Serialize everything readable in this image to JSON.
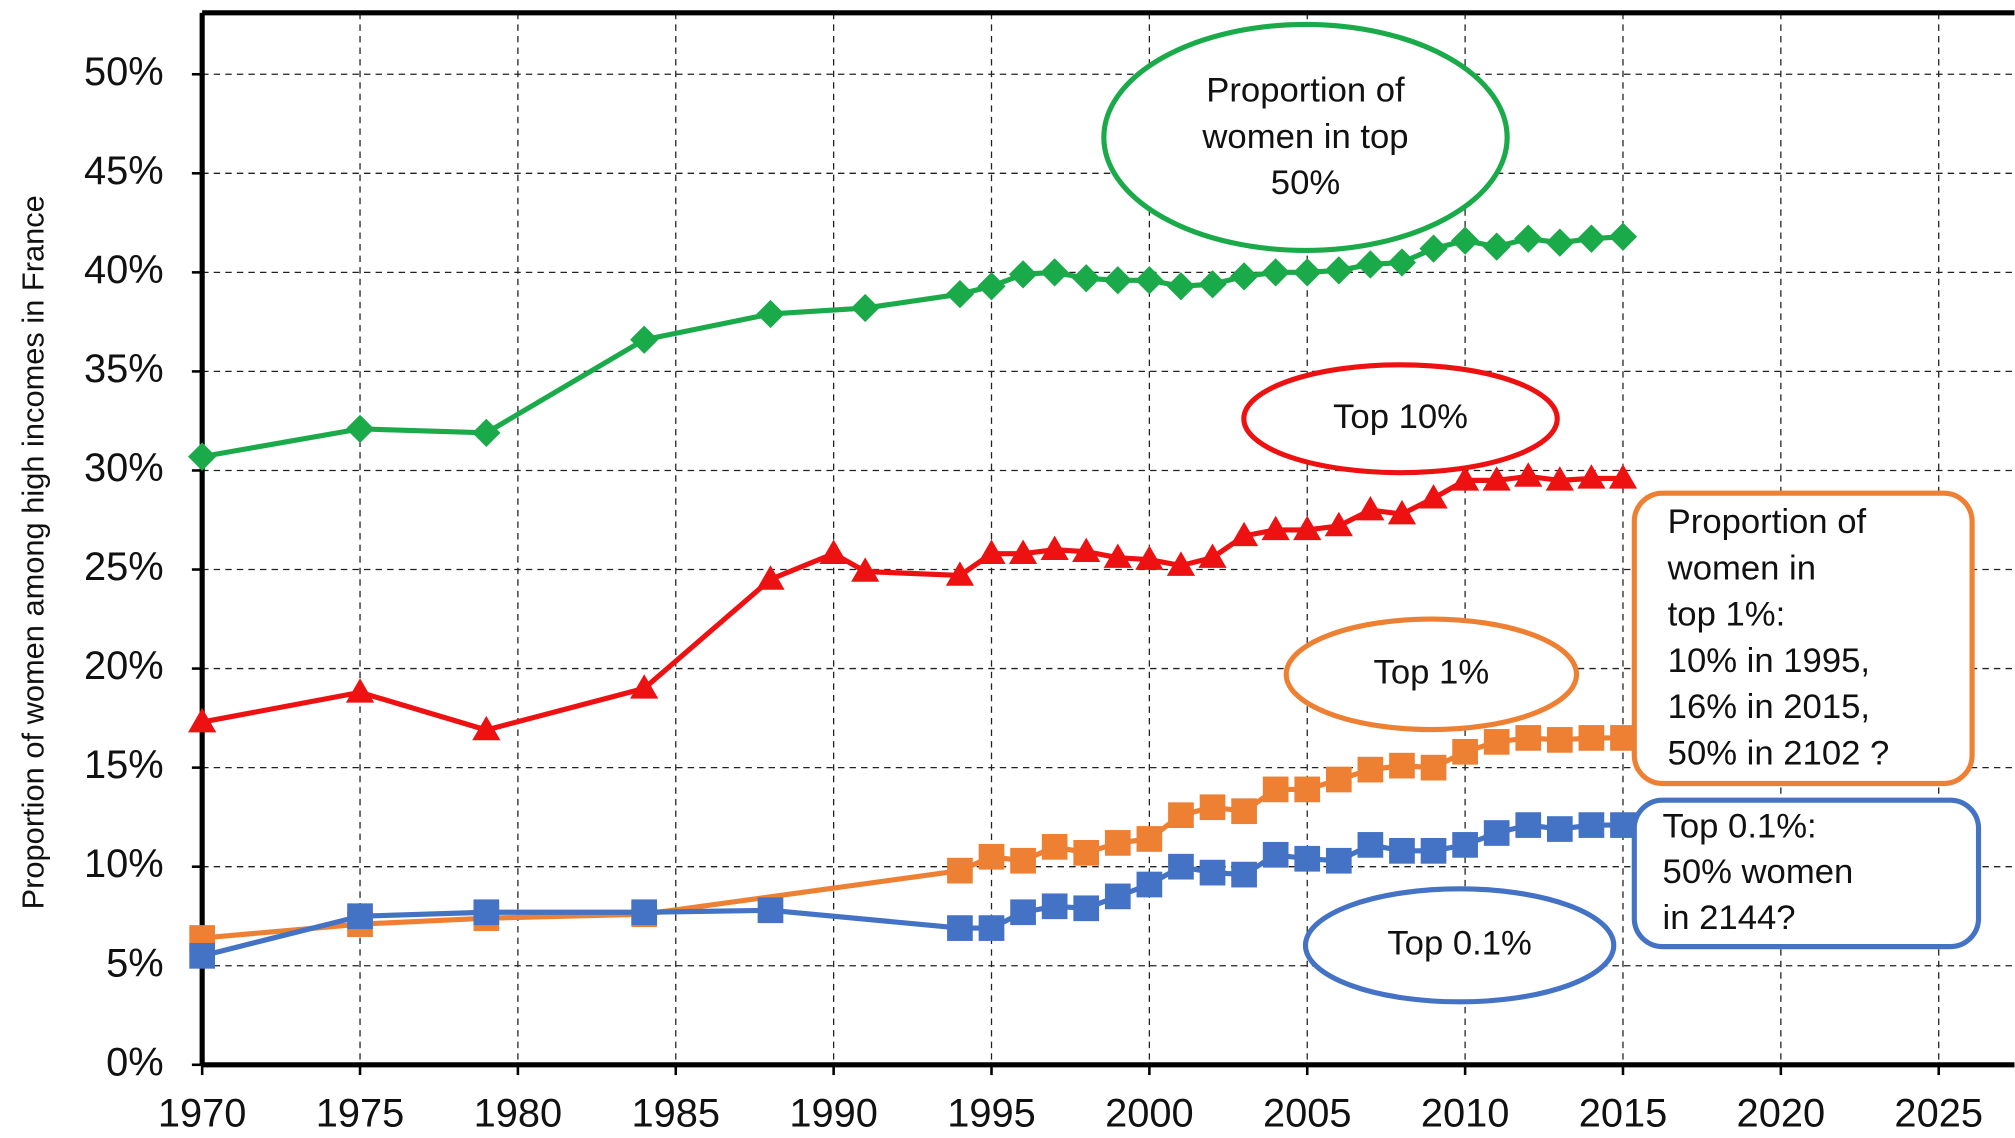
{
  "chart_data": {
    "type": "line",
    "y_label": "Proportion of women among high incomes in France",
    "xlim": [
      1970,
      2027.4
    ],
    "ylim": [
      0,
      53.1
    ],
    "xticks": [
      1970,
      1975,
      1980,
      1985,
      1990,
      1995,
      2000,
      2005,
      2010,
      2015,
      2020,
      2025
    ],
    "yticks": [
      {
        "value": 0,
        "label": "0%"
      },
      {
        "value": 5,
        "label": "5%"
      },
      {
        "value": 10,
        "label": "10%"
      },
      {
        "value": 15,
        "label": "15%"
      },
      {
        "value": 20,
        "label": "20%"
      },
      {
        "value": 25,
        "label": "25%"
      },
      {
        "value": 30,
        "label": "30%"
      },
      {
        "value": 35,
        "label": "35%"
      },
      {
        "value": 40,
        "label": "40%"
      },
      {
        "value": 45,
        "label": "45%"
      },
      {
        "value": 50,
        "label": "50%"
      }
    ],
    "grid": true,
    "series": [
      {
        "color": "#1aaa4a",
        "marker": "diamond",
        "x": [
          1970,
          1975,
          1979,
          1984,
          1988,
          1991,
          1994,
          1995,
          1996,
          1997,
          1998,
          1999,
          2000,
          2001,
          2002,
          2003,
          2004,
          2005,
          2006,
          2007,
          2008,
          2009,
          2010,
          2011,
          2012,
          2013,
          2014,
          2015
        ],
        "values": [
          30.7,
          32.1,
          31.9,
          36.6,
          37.9,
          38.2,
          38.9,
          39.3,
          39.9,
          40.0,
          39.7,
          39.6,
          39.6,
          39.3,
          39.4,
          39.8,
          40.0,
          40.0,
          40.1,
          40.4,
          40.5,
          41.2,
          41.6,
          41.3,
          41.7,
          41.5,
          41.7,
          41.8
        ]
      },
      {
        "color": "#ee1111",
        "marker": "triangle",
        "x": [
          1970,
          1975,
          1979,
          1984,
          1988,
          1990,
          1991,
          1994,
          1995,
          1996,
          1997,
          1998,
          1999,
          2000,
          2001,
          2002,
          2003,
          2004,
          2005,
          2006,
          2007,
          2008,
          2009,
          2010,
          2011,
          2012,
          2013,
          2014,
          2015
        ],
        "values": [
          17.3,
          18.8,
          16.9,
          19.0,
          24.5,
          25.8,
          24.9,
          24.7,
          25.8,
          25.8,
          26.0,
          25.9,
          25.6,
          25.5,
          25.2,
          25.6,
          26.7,
          27.0,
          27.0,
          27.2,
          28.0,
          27.8,
          28.6,
          29.5,
          29.5,
          29.7,
          29.5,
          29.6,
          29.6
        ]
      },
      {
        "color": "#ee8033",
        "marker": "square",
        "x": [
          1970,
          1975,
          1979,
          1984,
          1994,
          1995,
          1996,
          1997,
          1998,
          1999,
          2000,
          2001,
          2002,
          2003,
          2004,
          2005,
          2006,
          2007,
          2008,
          2009,
          2010,
          2011,
          2012,
          2013,
          2014,
          2015
        ],
        "values": [
          6.4,
          7.1,
          7.4,
          7.6,
          9.8,
          10.5,
          10.3,
          11.0,
          10.7,
          11.2,
          11.4,
          12.6,
          13.0,
          12.8,
          13.9,
          13.9,
          14.4,
          14.9,
          15.1,
          15.0,
          15.8,
          16.3,
          16.5,
          16.4,
          16.5,
          16.5
        ]
      },
      {
        "color": "#4472c4",
        "marker": "square",
        "x": [
          1970,
          1975,
          1979,
          1984,
          1988,
          1994,
          1995,
          1996,
          1997,
          1998,
          1999,
          2000,
          2001,
          2002,
          2003,
          2004,
          2005,
          2006,
          2007,
          2008,
          2009,
          2010,
          2011,
          2012,
          2013,
          2014,
          2015
        ],
        "values": [
          5.5,
          7.5,
          7.7,
          7.7,
          7.8,
          6.9,
          6.9,
          7.7,
          8.0,
          7.9,
          8.5,
          9.1,
          10.0,
          9.7,
          9.6,
          10.6,
          10.4,
          10.3,
          11.1,
          10.8,
          10.8,
          11.1,
          11.7,
          12.1,
          11.9,
          12.1,
          12.1
        ]
      }
    ],
    "annotations": [
      {
        "shape": "ellipse",
        "color": "#1aaa4a",
        "lines": [
          "Proportion of",
          "women in top",
          "50%"
        ]
      },
      {
        "shape": "ellipse",
        "color": "#ee1111",
        "lines": [
          "Top 10%"
        ]
      },
      {
        "shape": "ellipse",
        "color": "#ee8033",
        "lines": [
          "Top 1%"
        ]
      },
      {
        "shape": "box",
        "color": "#ee8033",
        "lines": [
          "Proportion of",
          "women in",
          "top 1%:",
          "10% in 1995,",
          "16% in 2015,",
          "50% in 2102 ?"
        ]
      },
      {
        "shape": "ellipse",
        "color": "#4472c4",
        "lines": [
          "Top 0.1%"
        ]
      },
      {
        "shape": "box",
        "color": "#4472c4",
        "lines": [
          "Top 0.1%:",
          "50% women",
          "in 2144?"
        ]
      }
    ]
  }
}
